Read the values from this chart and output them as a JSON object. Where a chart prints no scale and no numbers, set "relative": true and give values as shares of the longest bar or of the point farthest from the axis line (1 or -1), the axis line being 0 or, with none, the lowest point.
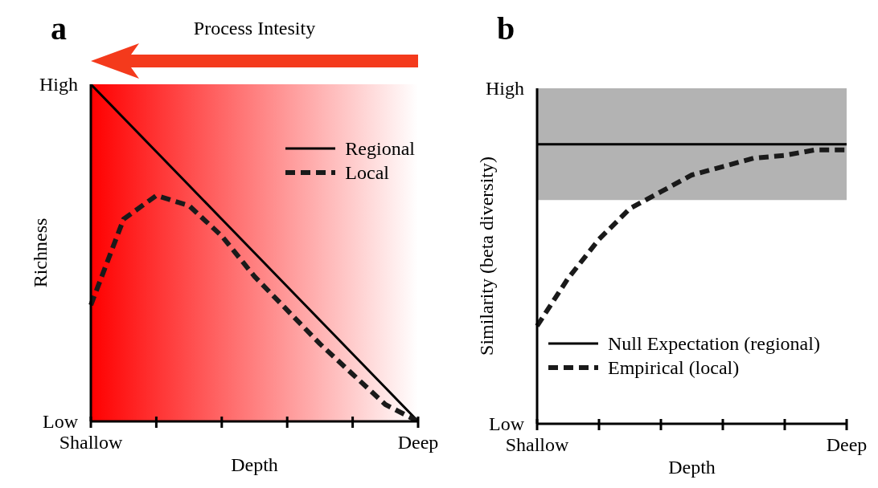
{
  "chart_data": [
    {
      "type": "line",
      "title": "a",
      "xlabel": "Depth",
      "ylabel": "Richness",
      "relative": true,
      "annotations": [
        "Process Intesity",
        "High",
        "Low"
      ],
      "legend": "top right",
      "marker": "none",
      "categories": [
        "Shallow",
        null,
        null,
        null,
        null,
        null,
        null,
        null,
        null,
        null,
        "Deep"
      ],
      "series": [
        {
          "name": "Regional",
          "color": "#000000",
          "line_style": "solid",
          "values": [
            1,
            0.9,
            0.8,
            0.7,
            0.6,
            0.5,
            0.4,
            0.3,
            0.2,
            0.1,
            0
          ]
        },
        {
          "name": "Local",
          "color": "#1a1a1a",
          "line_style": "dashed",
          "values": [
            0.345,
            0.6,
            0.67,
            0.64,
            0.55,
            0.43,
            0.33,
            0.23,
            0.14,
            0.05,
            0
          ]
        }
      ]
    },
    {
      "type": "line",
      "title": "b",
      "xlabel": "Depth",
      "ylabel": "Similarity (beta diversity)",
      "relative": true,
      "annotations": [
        "High",
        "Low"
      ],
      "legend": "bottom left",
      "marker": "none",
      "categories": [
        "Shallow",
        null,
        null,
        null,
        null,
        null,
        null,
        null,
        null,
        null,
        "Deep"
      ],
      "bands": [
        {
          "axis": "y",
          "from": 0.8,
          "to": 1.2,
          "color": "#b3b3b3"
        }
      ],
      "series": [
        {
          "name": "Null Expectation (regional)",
          "color": "#000000",
          "line_style": "solid",
          "values": [
            1,
            1,
            1,
            1,
            1,
            1,
            1,
            1,
            1,
            1,
            1
          ]
        },
        {
          "name": "Empirical (local)",
          "color": "#1a1a1a",
          "line_style": "dashed",
          "values": [
            0.35,
            0.52,
            0.66,
            0.77,
            0.83,
            0.89,
            0.92,
            0.95,
            0.96,
            0.98,
            0.98
          ]
        }
      ]
    }
  ]
}
